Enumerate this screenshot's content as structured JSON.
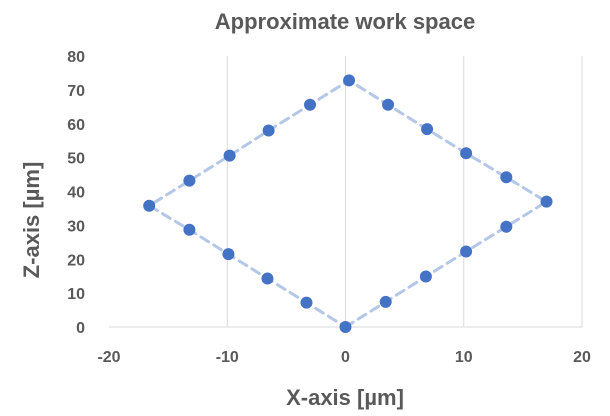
{
  "chart_data": {
    "type": "scatter",
    "title": "Approximate work space",
    "xlabel": "X-axis [µm]",
    "ylabel": "Z-axis [µm]",
    "xlim": [
      -20,
      20
    ],
    "ylim": [
      0,
      80
    ],
    "xticks": [
      -20,
      -10,
      0,
      10,
      20
    ],
    "yticks": [
      0,
      10,
      20,
      30,
      40,
      50,
      60,
      70,
      80
    ],
    "xtick_labels": [
      "-20",
      "-10",
      "0",
      "10",
      "20"
    ],
    "ytick_labels": [
      "0",
      "10",
      "20",
      "30",
      "40",
      "50",
      "60",
      "70",
      "80"
    ],
    "grid": "vertical",
    "legend": "none",
    "series": [
      {
        "color": "#4472c4",
        "line_color": "#b4c7e7",
        "line_style": "dashed",
        "points": [
          {
            "x": 0,
            "y": 0
          },
          {
            "x": 3.4,
            "y": 7.4
          },
          {
            "x": 6.8,
            "y": 14.9
          },
          {
            "x": 10.2,
            "y": 22.3
          },
          {
            "x": 13.6,
            "y": 29.6
          },
          {
            "x": 17.0,
            "y": 37.0
          },
          {
            "x": 13.6,
            "y": 44.2
          },
          {
            "x": 10.2,
            "y": 51.3
          },
          {
            "x": 6.9,
            "y": 58.4
          },
          {
            "x": 3.6,
            "y": 65.6
          },
          {
            "x": 0.3,
            "y": 72.8
          },
          {
            "x": -3.0,
            "y": 65.6
          },
          {
            "x": -6.5,
            "y": 58.0
          },
          {
            "x": -9.8,
            "y": 50.6
          },
          {
            "x": -13.2,
            "y": 43.2
          },
          {
            "x": -16.6,
            "y": 35.8
          },
          {
            "x": -13.2,
            "y": 28.7
          },
          {
            "x": -9.9,
            "y": 21.5
          },
          {
            "x": -6.6,
            "y": 14.3
          },
          {
            "x": -3.3,
            "y": 7.2
          },
          {
            "x": 0,
            "y": 0
          }
        ]
      }
    ]
  }
}
